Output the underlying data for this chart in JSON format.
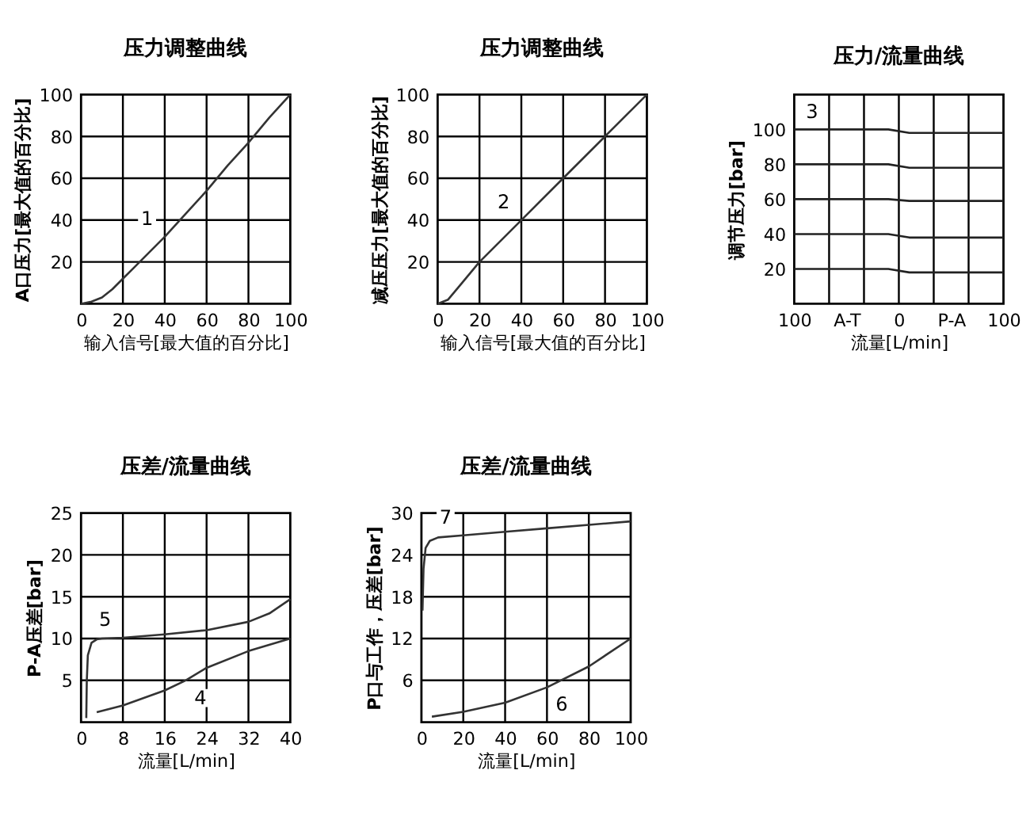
{
  "chart_data": [
    {
      "type": "line",
      "title": "压力调整曲线",
      "xlabel": "输入信号[最大值的百分比]",
      "ylabel": "A口压力[最大值的百分比]",
      "xlim": [
        0,
        100
      ],
      "ylim": [
        0,
        100
      ],
      "xticks": [
        0,
        20,
        40,
        60,
        80,
        100
      ],
      "yticks": [
        20,
        40,
        60,
        80,
        100
      ],
      "grid": true,
      "series": [
        {
          "name": "1",
          "color": "#333333",
          "x": [
            0,
            5,
            10,
            15,
            20,
            25,
            30,
            40,
            50,
            60,
            70,
            80,
            90,
            100
          ],
          "values": [
            0,
            1,
            3,
            7,
            12,
            17,
            22,
            32,
            43,
            54,
            66,
            77,
            89,
            100
          ]
        }
      ]
    },
    {
      "type": "line",
      "title": "压力调整曲线",
      "xlabel": "输入信号[最大值的百分比]",
      "ylabel": "减压压力[最大值的百分比]",
      "xlim": [
        0,
        100
      ],
      "ylim": [
        0,
        100
      ],
      "xticks": [
        0,
        20,
        40,
        60,
        80,
        100
      ],
      "yticks": [
        20,
        40,
        60,
        80,
        100
      ],
      "grid": true,
      "series": [
        {
          "name": "2",
          "color": "#333333",
          "x": [
            0,
            5,
            10,
            20,
            40,
            60,
            80,
            100
          ],
          "values": [
            0,
            2,
            8,
            20,
            40,
            60,
            80,
            100
          ]
        }
      ]
    },
    {
      "type": "line",
      "title": "压力/流量曲线",
      "xlabel": "流量[L/min]",
      "ylabel": "调节压力[bar]",
      "xlim": [
        -100,
        100
      ],
      "ylim": [
        0,
        120
      ],
      "xticks": [
        {
          "value": -100,
          "label": "100"
        },
        {
          "value": -66.67,
          "label": null
        },
        {
          "value": -50,
          "label": "A-T"
        },
        {
          "value": -33.33,
          "label": null
        },
        0,
        {
          "value": 33.33,
          "label": null
        },
        {
          "value": 50,
          "label": "P-A"
        },
        {
          "value": 66.67,
          "label": null
        },
        {
          "value": 100,
          "label": "100"
        }
      ],
      "yticks": [
        20,
        40,
        60,
        80,
        100
      ],
      "grid": "x",
      "annotations": [
        "3"
      ],
      "series": [
        {
          "color": "#222222",
          "x": [
            -100,
            -10,
            10,
            100
          ],
          "values": [
            100,
            100,
            98,
            98
          ]
        },
        {
          "color": "#222222",
          "x": [
            -100,
            -10,
            10,
            100
          ],
          "values": [
            80,
            80,
            78,
            78
          ]
        },
        {
          "color": "#222222",
          "x": [
            -100,
            -10,
            10,
            100
          ],
          "values": [
            60,
            60,
            59,
            59
          ]
        },
        {
          "color": "#222222",
          "x": [
            -100,
            -10,
            10,
            100
          ],
          "values": [
            40,
            40,
            38,
            38
          ]
        },
        {
          "color": "#222222",
          "x": [
            -100,
            -10,
            10,
            100
          ],
          "values": [
            20,
            20,
            18,
            18
          ]
        }
      ]
    },
    {
      "type": "line",
      "title": "压差/流量曲线",
      "xlabel": "流量[L/min]",
      "ylabel": "P-A压差[bar]",
      "xlim": [
        0,
        40
      ],
      "ylim": [
        0,
        25
      ],
      "xticks": [
        0,
        8,
        16,
        24,
        32,
        40
      ],
      "yticks": [
        5,
        10,
        15,
        20,
        25
      ],
      "grid": true,
      "series": [
        {
          "name": "5",
          "color": "#333333",
          "x": [
            1,
            1.1,
            1.3,
            2,
            3,
            4,
            8,
            16,
            24,
            32,
            36,
            40
          ],
          "values": [
            0.5,
            5,
            8,
            9.5,
            9.9,
            10,
            10.1,
            10.5,
            11,
            12,
            13,
            14.7
          ]
        },
        {
          "name": "4",
          "color": "#333333",
          "x": [
            3,
            8,
            16,
            20,
            24,
            32,
            40
          ],
          "values": [
            1.2,
            2,
            3.8,
            5,
            6.5,
            8.5,
            10
          ]
        }
      ]
    },
    {
      "type": "line",
      "title": "压差/流量曲线",
      "xlabel": "流量[L/min]",
      "ylabel": "P口与工作，压差[bar]",
      "xlim": [
        0,
        100
      ],
      "ylim": [
        0,
        30
      ],
      "xticks": [
        0,
        20,
        40,
        60,
        80,
        100
      ],
      "yticks": [
        6,
        12,
        18,
        24,
        30
      ],
      "grid": true,
      "series": [
        {
          "name": "7",
          "color": "#333333",
          "x": [
            0.5,
            1,
            2,
            4,
            8,
            20,
            40,
            60,
            80,
            100
          ],
          "values": [
            16,
            22,
            25,
            26,
            26.5,
            26.8,
            27.3,
            27.8,
            28.3,
            28.8
          ]
        },
        {
          "name": "6",
          "color": "#333333",
          "x": [
            5,
            20,
            40,
            60,
            80,
            100
          ],
          "values": [
            0.8,
            1.5,
            2.8,
            5,
            8,
            12
          ]
        }
      ]
    }
  ]
}
